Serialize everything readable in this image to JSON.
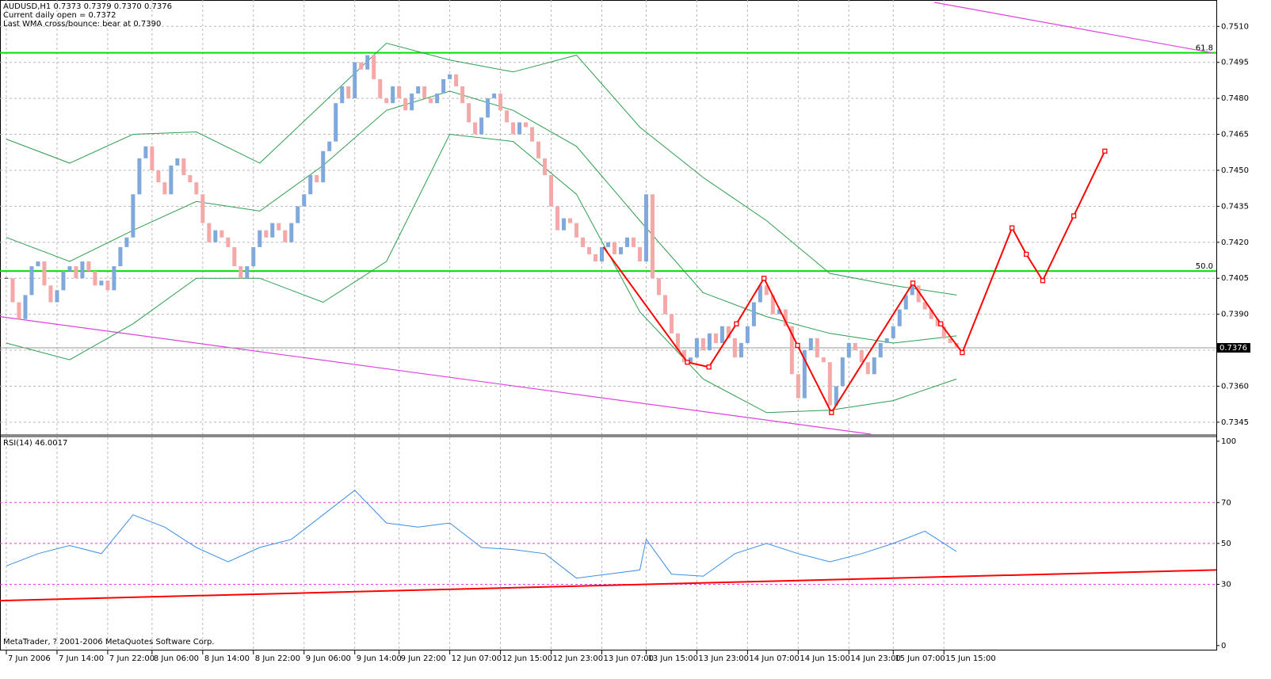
{
  "chart_data": [
    {
      "type": "candlestick",
      "title": "AUDUSD,H1  0.7373 0.7379 0.7370 0.7376",
      "annotations": [
        "Current daily open = 0.7372",
        "Last WMA cross/bounce: bear at 0.7390"
      ],
      "xlim": [
        -1,
        191
      ],
      "ylim": [
        0.734,
        0.7521
      ],
      "grid": true,
      "yticks": [
        0.7345,
        {
          "value": 0.736,
          "label": "0.7360"
        },
        0.7375,
        {
          "value": 0.739,
          "label": "0.7390"
        },
        0.7405,
        {
          "value": 0.742,
          "label": "0.7420"
        },
        0.7435,
        {
          "value": 0.745,
          "label": "0.7450"
        },
        0.7465,
        {
          "value": 0.748,
          "label": "0.7480"
        },
        0.7495,
        {
          "value": 0.751,
          "label": "0.7510"
        }
      ],
      "xticks": [
        {
          "value": 0,
          "label": "7 Jun 2006"
        },
        {
          "value": 8,
          "label": "7 Jun 14:00"
        },
        {
          "value": 16,
          "label": "7 Jun 22:00"
        },
        {
          "value": 23,
          "label": "8 Jun 06:00"
        },
        {
          "value": 31,
          "label": "8 Jun 14:00"
        },
        {
          "value": 39,
          "label": "8 Jun 22:00"
        },
        {
          "value": 47,
          "label": "9 Jun 06:00"
        },
        {
          "value": 55,
          "label": "9 Jun 14:00"
        },
        {
          "value": 62,
          "label": "9 Jun 22:00"
        },
        {
          "value": 70,
          "label": "12 Jun 07:00"
        },
        {
          "value": 78,
          "label": "12 Jun 15:00"
        },
        {
          "value": 86,
          "label": "12 Jun 23:00"
        },
        {
          "value": 94,
          "label": "13 Jun 07:00"
        },
        {
          "value": 101,
          "label": "13 Jun 15:00"
        },
        {
          "value": 109,
          "label": "13 Jun 23:00"
        },
        {
          "value": 117,
          "label": "14 Jun 07:00"
        },
        {
          "value": 125,
          "label": "14 Jun 15:00"
        },
        {
          "value": 133,
          "label": "14 Jun 23:00"
        },
        {
          "value": 140,
          "label": "15 Jun 07:00"
        },
        {
          "value": 148,
          "label": "15 Jun 15:00"
        }
      ],
      "close": [
        0.7405,
        0.7395,
        0.7388,
        0.7398,
        0.741,
        0.7412,
        0.7402,
        0.7395,
        0.74,
        0.7408,
        0.741,
        0.7405,
        0.7412,
        0.7408,
        0.7402,
        0.7404,
        0.74,
        0.741,
        0.7418,
        0.7422,
        0.744,
        0.7455,
        0.746,
        0.745,
        0.7445,
        0.744,
        0.7452,
        0.7455,
        0.7448,
        0.7445,
        0.744,
        0.7428,
        0.742,
        0.7425,
        0.7422,
        0.7418,
        0.741,
        0.7405,
        0.741,
        0.7418,
        0.7425,
        0.7422,
        0.7428,
        0.7425,
        0.742,
        0.7428,
        0.7435,
        0.744,
        0.7448,
        0.7445,
        0.7458,
        0.7462,
        0.7478,
        0.7485,
        0.748,
        0.7495,
        0.7492,
        0.7498,
        0.7488,
        0.748,
        0.7478,
        0.7485,
        0.748,
        0.7475,
        0.7482,
        0.7485,
        0.748,
        0.7478,
        0.7482,
        0.7488,
        0.749,
        0.7485,
        0.7478,
        0.747,
        0.7465,
        0.7472,
        0.748,
        0.7482,
        0.7475,
        0.747,
        0.7465,
        0.747,
        0.7468,
        0.7462,
        0.7455,
        0.7448,
        0.7435,
        0.7425,
        0.743,
        0.7428,
        0.7422,
        0.7418,
        0.7415,
        0.7412,
        0.7418,
        0.742,
        0.7415,
        0.7418,
        0.7422,
        0.7418,
        0.7412,
        0.744,
        0.7405,
        0.7398,
        0.739,
        0.7382,
        0.7375,
        0.737,
        0.7372,
        0.738,
        0.7375,
        0.7382,
        0.7378,
        0.7385,
        0.738,
        0.7372,
        0.7378,
        0.7385,
        0.7395,
        0.7402,
        0.7398,
        0.739,
        0.7392,
        0.7385,
        0.7365,
        0.7355,
        0.7375,
        0.738,
        0.7372,
        0.737,
        0.7352,
        0.736,
        0.7372,
        0.7378,
        0.7375,
        0.737,
        0.7365,
        0.7372,
        0.7378,
        0.738,
        0.7385,
        0.7392,
        0.7398,
        0.7402,
        0.7395,
        0.7392,
        0.7388,
        0.7385,
        0.738,
        0.7378,
        0.7376
      ],
      "up_color": "#7fa9dc",
      "down_color": "#f5a8a8",
      "bands": {
        "x": [
          0,
          10,
          20,
          30,
          40,
          50,
          60,
          70,
          80,
          90,
          100,
          110,
          120,
          130,
          140,
          150
        ],
        "upper": [
          0.7463,
          0.7453,
          0.7465,
          0.7466,
          0.7453,
          0.7478,
          0.7503,
          0.7496,
          0.7491,
          0.7498,
          0.7468,
          0.7447,
          0.7429,
          0.7407,
          0.7402,
          0.7398
        ],
        "middle": [
          0.7422,
          0.7412,
          0.7425,
          0.7437,
          0.7433,
          0.7452,
          0.7475,
          0.7483,
          0.7475,
          0.746,
          0.7429,
          0.7399,
          0.7389,
          0.7382,
          0.7378,
          0.7381
        ],
        "lower": [
          0.7378,
          0.7371,
          0.7386,
          0.7405,
          0.7405,
          0.7395,
          0.7412,
          0.7465,
          0.7462,
          0.744,
          0.7391,
          0.7363,
          0.7349,
          0.735,
          0.7354,
          0.7363
        ],
        "color": "#2e9e4f"
      },
      "levels": [
        {
          "value": 0.7499,
          "label": "61.8"
        },
        {
          "value": 0.7408,
          "label": "50.0"
        }
      ],
      "level_color": "#00e000",
      "trendlines": [
        {
          "x": [
            146.5,
            190.3
          ],
          "values": [
            0.752,
            0.7499
          ]
        },
        {
          "x": [
            -1,
            136.5
          ],
          "values": [
            0.7389,
            0.734
          ]
        }
      ],
      "trendline_color": "#e040e0",
      "zigzag": {
        "x": [
          94.25,
          107.5,
          110.9,
          115.25,
          119.6,
          124.9,
          130.25,
          143.1,
          147.5,
          150.9,
          158.75,
          161,
          163.6,
          168.5,
          173.4
        ],
        "values": [
          0.7418,
          0.737,
          0.7368,
          0.7386,
          0.7405,
          0.7377,
          0.7349,
          0.7403,
          0.7386,
          0.7374,
          0.7426,
          0.7415,
          0.7404,
          0.7431,
          0.7458
        ],
        "color": "#ff0000"
      },
      "last_price": 0.7376,
      "footer": "MetaTrader, ? 2001-2006 MetaQuotes Software Corp."
    },
    {
      "type": "line",
      "title": "RSI(14) 46.0017",
      "x": [
        0,
        5,
        10,
        15,
        20,
        25,
        30,
        35,
        40,
        45,
        50,
        55,
        60,
        65,
        70,
        75,
        80,
        85,
        90,
        95,
        100,
        101,
        105,
        110,
        115,
        120,
        125,
        130,
        135,
        140,
        145,
        150
      ],
      "values": [
        39,
        45,
        49,
        45,
        64,
        58,
        48,
        41,
        48,
        52,
        64,
        76,
        60,
        58,
        60,
        48,
        47,
        45,
        33,
        35,
        37,
        52,
        35,
        34,
        45,
        50,
        45,
        41,
        45,
        50,
        56,
        46
      ],
      "color": "#3a8ee6",
      "ylim": [
        -2,
        102.3
      ],
      "yticks": [
        0,
        30,
        50,
        70,
        100
      ],
      "levels": [
        30,
        50,
        70
      ],
      "level_color": "#e040e0",
      "trendline": {
        "x": [
          -1,
          191
        ],
        "values": [
          22,
          37
        ],
        "color": "#ff0000"
      }
    }
  ]
}
